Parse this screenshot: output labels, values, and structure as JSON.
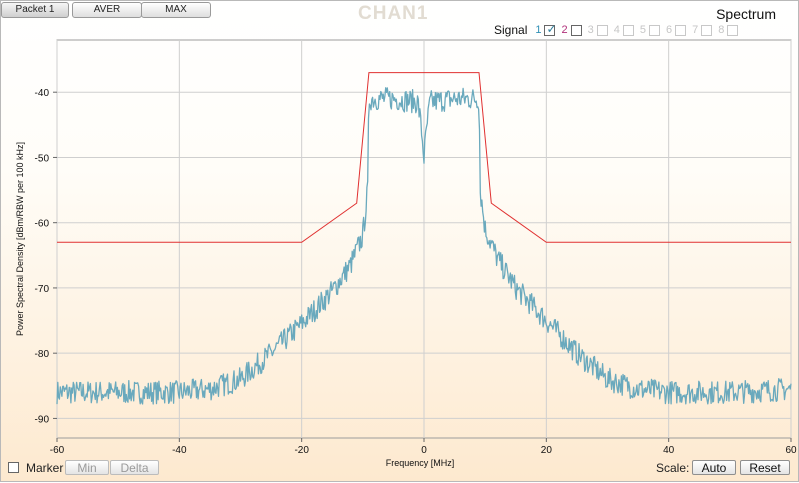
{
  "toolbar": {
    "tabs": [
      "Packet 1",
      "AVER",
      "MAX"
    ]
  },
  "watermark": "CHAN1",
  "panel_title": "Spectrum",
  "signals": {
    "label": "Signal",
    "items": [
      {
        "num": "1",
        "checked": true,
        "color": "#2f8fb5",
        "enabled": true
      },
      {
        "num": "2",
        "checked": false,
        "color": "#b0307a",
        "enabled": true
      },
      {
        "num": "3",
        "checked": false,
        "color": "#c6c6c6",
        "enabled": false
      },
      {
        "num": "4",
        "checked": false,
        "color": "#c6c6c6",
        "enabled": false
      },
      {
        "num": "5",
        "checked": false,
        "color": "#c6c6c6",
        "enabled": false
      },
      {
        "num": "6",
        "checked": false,
        "color": "#c6c6c6",
        "enabled": false
      },
      {
        "num": "7",
        "checked": false,
        "color": "#c6c6c6",
        "enabled": false
      },
      {
        "num": "8",
        "checked": false,
        "color": "#c6c6c6",
        "enabled": false
      }
    ]
  },
  "bottom": {
    "marker_label": "Marker",
    "min_label": "Min",
    "delta_label": "Delta",
    "scale_label": "Scale:",
    "auto_label": "Auto",
    "reset_label": "Reset"
  },
  "chart_data": {
    "type": "line",
    "xlabel": "Frequency [MHz]",
    "ylabel": "Power Spectral Density [dBm/RBW per 100 kHz]",
    "xlim": [
      -60,
      60
    ],
    "ylim": [
      -93,
      -32
    ],
    "x_ticks": [
      -60,
      -40,
      -20,
      0,
      20,
      40,
      60
    ],
    "y_ticks": [
      -40,
      -50,
      -60,
      -70,
      -80,
      -90
    ],
    "grid": true,
    "series": [
      {
        "color": "#6aa9bd",
        "x": [
          -60,
          -50,
          -40,
          -35,
          -30,
          -25,
          -20,
          -15,
          -12,
          -10,
          -9.2,
          -9,
          -5,
          -1,
          -0.5,
          0,
          0.5,
          1,
          5,
          9,
          9.2,
          10,
          12,
          15,
          20,
          25,
          30,
          35,
          40,
          50,
          60
        ],
        "y": [
          -86,
          -86,
          -86,
          -85.5,
          -84,
          -80,
          -75.5,
          -70.5,
          -66.5,
          -62,
          -55,
          -41,
          -41,
          -41.5,
          -45,
          -50,
          -45,
          -41.5,
          -41,
          -41,
          -55,
          -61,
          -65.5,
          -70,
          -75,
          -80,
          -84,
          -85.5,
          -86,
          -86,
          -85.5
        ]
      },
      {
        "color": "#e03030",
        "x": [
          -60,
          -20,
          -11,
          -9,
          9,
          11,
          20,
          60
        ],
        "y": [
          -63,
          -63,
          -57,
          -37,
          -37,
          -57,
          -63,
          -63
        ]
      }
    ]
  }
}
